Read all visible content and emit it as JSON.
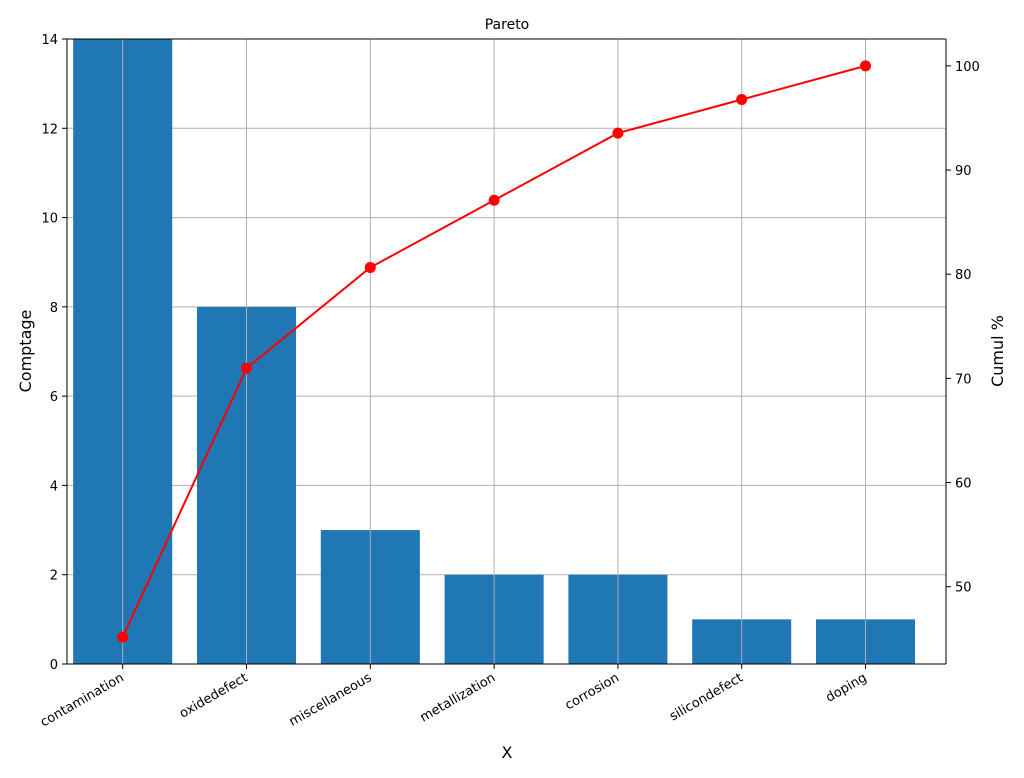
{
  "chart_data": {
    "type": "bar",
    "title": "Pareto",
    "xlabel": "X",
    "ylabel": "Comptage",
    "y2label": "Cumul %",
    "categories": [
      "contamination",
      "oxidedefect",
      "miscellaneous",
      "metallization",
      "corrosion",
      "silicondefect",
      "doping"
    ],
    "series": [
      {
        "values": [
          14,
          8,
          3,
          2,
          2,
          1,
          1
        ],
        "kind": "bar",
        "axis": "left"
      },
      {
        "values": [
          45.16,
          70.97,
          80.65,
          87.1,
          93.55,
          96.77,
          100.0
        ],
        "kind": "line",
        "axis": "right"
      }
    ],
    "ylim": [
      0,
      14
    ],
    "y2lim": [
      42.58,
      102.58
    ],
    "yticks": [
      0,
      2,
      4,
      6,
      8,
      10,
      12,
      14
    ],
    "y2ticks": [
      50,
      60,
      70,
      80,
      90,
      100
    ],
    "grid": true,
    "colors": {
      "bar": "#1f77b4",
      "line": "#ff0000",
      "grid": "#b0b0b0"
    }
  }
}
